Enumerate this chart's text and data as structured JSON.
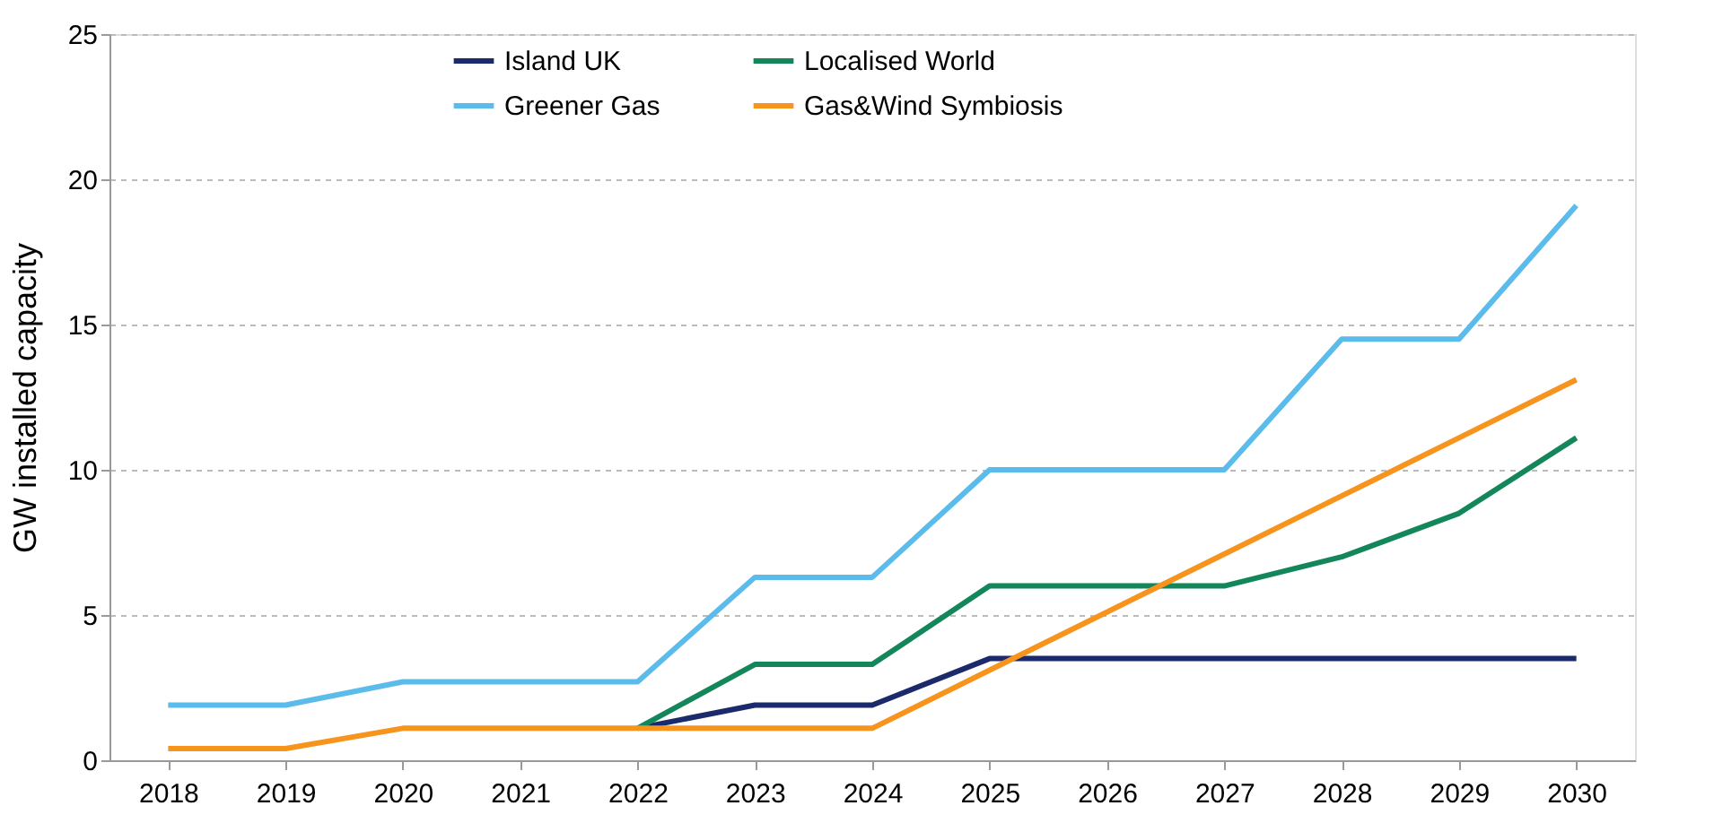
{
  "chart_data": {
    "type": "line",
    "ylabel": "GW installed capacity",
    "x": [
      2018,
      2019,
      2020,
      2021,
      2022,
      2023,
      2024,
      2025,
      2026,
      2027,
      2028,
      2029,
      2030
    ],
    "xlim": [
      2017.5,
      2030.5
    ],
    "xticks": [
      2018,
      2019,
      2020,
      2021,
      2022,
      2023,
      2024,
      2025,
      2026,
      2027,
      2028,
      2029,
      2030
    ],
    "ylim": [
      0,
      25
    ],
    "yticks": [
      0,
      5,
      10,
      15,
      20,
      25
    ],
    "grid": "y",
    "legend": "top",
    "marker": "none",
    "line_style": "solid",
    "series": [
      {
        "name": "Island UK",
        "color": "#1b2a6b",
        "values": [
          null,
          null,
          null,
          null,
          1.1,
          1.9,
          1.9,
          3.5,
          3.5,
          3.5,
          3.5,
          3.5,
          3.5
        ]
      },
      {
        "name": "Localised World",
        "color": "#13875a",
        "values": [
          null,
          null,
          null,
          null,
          1.1,
          3.3,
          3.3,
          6.0,
          6.0,
          6.0,
          7.0,
          8.5,
          11.1
        ]
      },
      {
        "name": "Greener Gas",
        "color": "#5bbcec",
        "values": [
          1.9,
          1.9,
          2.7,
          2.7,
          2.7,
          6.3,
          6.3,
          10.0,
          10.0,
          10.0,
          14.5,
          14.5,
          19.1
        ]
      },
      {
        "name": "Gas&Wind Symbiosis",
        "color": "#f7941d",
        "values": [
          0.4,
          0.4,
          1.1,
          1.1,
          1.1,
          1.1,
          1.1,
          3.1,
          5.1,
          7.1,
          9.1,
          11.1,
          13.1
        ]
      }
    ]
  }
}
